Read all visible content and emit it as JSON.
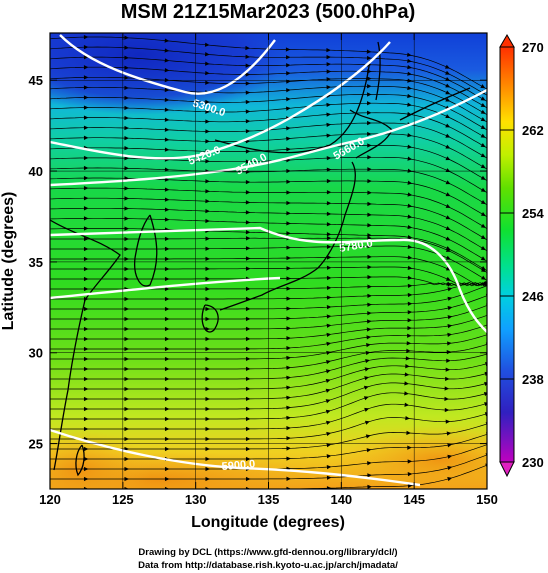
{
  "title": "MSM 21Z15Mar2023 (500.0hPa)",
  "x_axis": {
    "label": "Longitude (degrees)",
    "ticks": [
      "120",
      "125",
      "130",
      "135",
      "140",
      "145",
      "150"
    ],
    "range": [
      120,
      150
    ]
  },
  "y_axis": {
    "label": "Latitude  (degrees)",
    "ticks": [
      "25",
      "30",
      "35",
      "40",
      "45"
    ],
    "range": [
      22.5,
      47.6
    ]
  },
  "colorbar": {
    "ticks": [
      "230",
      "238",
      "246",
      "254",
      "262",
      "270"
    ],
    "range": [
      230,
      270
    ],
    "colors": [
      "#c000c0",
      "#3030d0",
      "#1070ff",
      "#00c0ff",
      "#00e0a0",
      "#10e010",
      "#60e000",
      "#c0f000",
      "#ffd000",
      "#ff9000",
      "#ff4000"
    ]
  },
  "contours": [
    {
      "label": "5300.0"
    },
    {
      "label": "5420.0"
    },
    {
      "label": "5540.0"
    },
    {
      "label": "5660.0"
    },
    {
      "label": "5780.0"
    },
    {
      "label": "5900.0"
    }
  ],
  "credits": {
    "line1": "Drawing by DCL (https://www.gfd-dennou.org/library/dcl/)",
    "line2": "Data from http://database.rish.kyoto-u.ac.jp/arch/jmadata/"
  }
}
